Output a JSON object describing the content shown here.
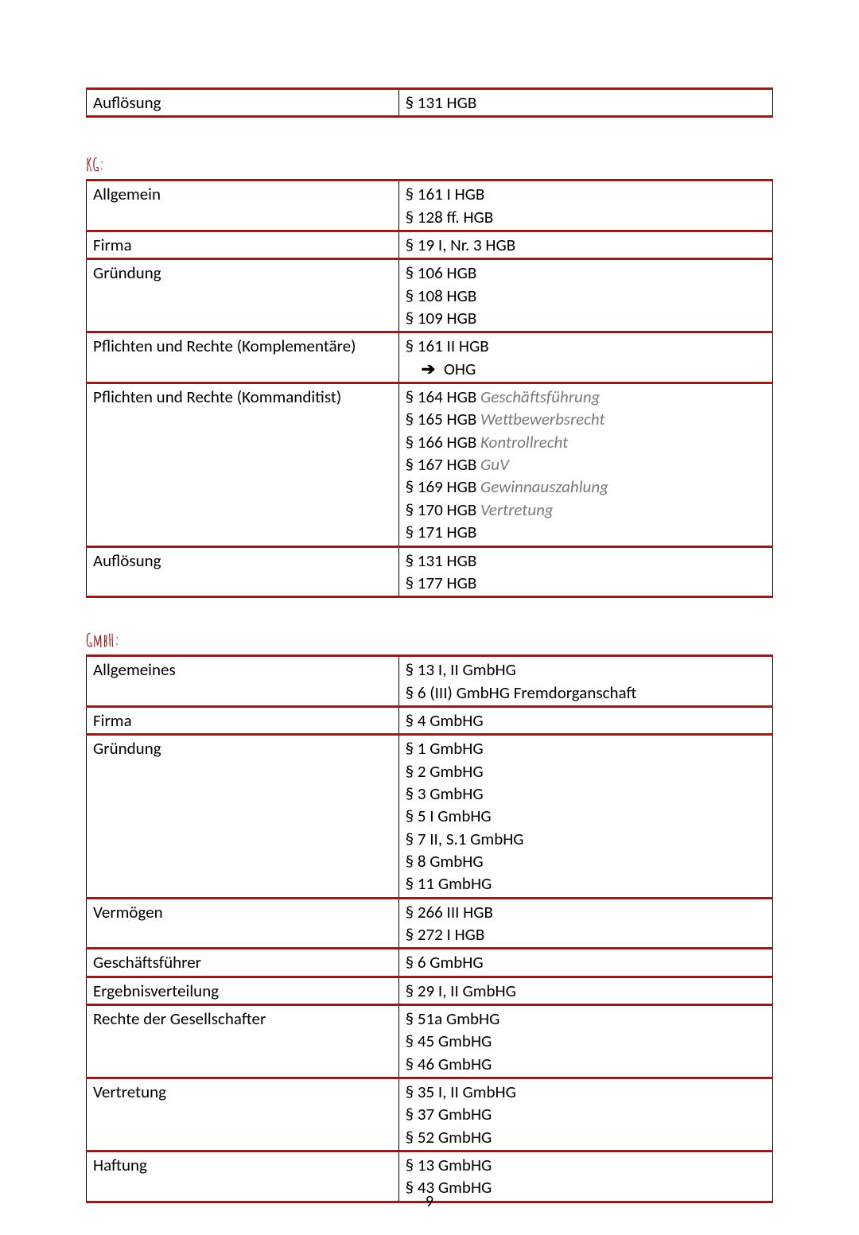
{
  "colors": {
    "tableBorderRed": "#9a1a1a",
    "cellSideBorder": "#000000",
    "headingColor": "#9a1a1a",
    "noteItalicColor": "#7a7a7a",
    "textColor": "#000000",
    "background": "#ffffff"
  },
  "layout": {
    "pageWidthPx": 1080,
    "pageHeightPx": 1527,
    "leftColPercent": 45.5,
    "rightColPercent": 54.5,
    "bodyFontSizePx": 21,
    "headingFontSizePx": 22,
    "redBorderWidthPx": 3,
    "blackBorderWidthPx": 1
  },
  "topTable": {
    "rows": [
      {
        "label": "Auflösung",
        "entries": [
          {
            "text": "§ 131 HGB"
          }
        ]
      }
    ]
  },
  "kg": {
    "heading": "KG:",
    "rows": [
      {
        "label": "Allgemein",
        "entries": [
          {
            "text": "§ 161 I HGB"
          },
          {
            "text": "§ 128 ff. HGB"
          }
        ]
      },
      {
        "label": "Firma",
        "entries": [
          {
            "text": "§ 19 I, Nr. 3 HGB"
          }
        ]
      },
      {
        "label": "Gründung",
        "entries": [
          {
            "text": "§ 106 HGB"
          },
          {
            "text": "§ 108 HGB"
          },
          {
            "text": "§ 109 HGB"
          }
        ]
      },
      {
        "label": "Pflichten und Rechte (Komplementäre)",
        "entries": [
          {
            "text": "§ 161 II HGB"
          },
          {
            "arrow": true,
            "text": "OHG"
          }
        ]
      },
      {
        "label": "Pflichten und Rechte (Kommanditist)",
        "entries": [
          {
            "text": "§ 164 HGB ",
            "note": "Geschäftsführung"
          },
          {
            "text": "§ 165 HGB ",
            "note": "Wettbewerbsrecht"
          },
          {
            "text": "§ 166 HGB ",
            "note": "Kontrollrecht"
          },
          {
            "text": "§ 167 HGB ",
            "note": "GuV"
          },
          {
            "text": "§ 169 HGB ",
            "note": "Gewinnauszahlung"
          },
          {
            "text": "§ 170 HGB ",
            "note": "Vertretung"
          },
          {
            "text": "§ 171 HGB"
          }
        ]
      },
      {
        "label": "Auflösung",
        "entries": [
          {
            "text": "§ 131 HGB"
          },
          {
            "text": "§ 177 HGB"
          }
        ]
      }
    ]
  },
  "gmbh": {
    "heading": "GmbH:",
    "rows": [
      {
        "label": "Allgemeines",
        "entries": [
          {
            "text": "§ 13 I, II GmbHG"
          },
          {
            "text": "§ 6 (III) GmbHG Fremdorganschaft"
          }
        ]
      },
      {
        "label": "Firma",
        "entries": [
          {
            "text": "§ 4 GmbHG"
          }
        ]
      },
      {
        "label": "Gründung",
        "entries": [
          {
            "text": "§ 1 GmbHG"
          },
          {
            "text": "§ 2 GmbHG"
          },
          {
            "text": "§ 3 GmbHG"
          },
          {
            "text": "§ 5 I GmbHG"
          },
          {
            "text": "§ 7 II, S.1 GmbHG"
          },
          {
            "text": "§ 8 GmbHG"
          },
          {
            "text": "§ 11 GmbHG"
          }
        ]
      },
      {
        "label": "Vermögen",
        "entries": [
          {
            "text": "§ 266 III HGB"
          },
          {
            "text": "§ 272 I HGB"
          }
        ]
      },
      {
        "label": "Geschäftsführer",
        "entries": [
          {
            "text": "§ 6 GmbHG"
          }
        ]
      },
      {
        "label": "Ergebnisverteilung",
        "entries": [
          {
            "text": "§ 29 I, II GmbHG"
          }
        ]
      },
      {
        "label": "Rechte der Gesellschafter",
        "entries": [
          {
            "text": "§ 51a GmbHG"
          },
          {
            "text": "§ 45 GmbHG"
          },
          {
            "text": "§ 46 GmbHG"
          }
        ]
      },
      {
        "label": "Vertretung",
        "entries": [
          {
            "text": "§ 35 I, II GmbHG"
          },
          {
            "text": "§ 37 GmbHG"
          },
          {
            "text": "§ 52 GmbHG"
          }
        ]
      },
      {
        "label": "Haftung",
        "entries": [
          {
            "text": "§ 13 GmbHG"
          },
          {
            "text": "§ 43 GmbHG"
          }
        ]
      }
    ]
  },
  "pageNumber": "9",
  "glyphs": {
    "arrowRight": "➔"
  }
}
